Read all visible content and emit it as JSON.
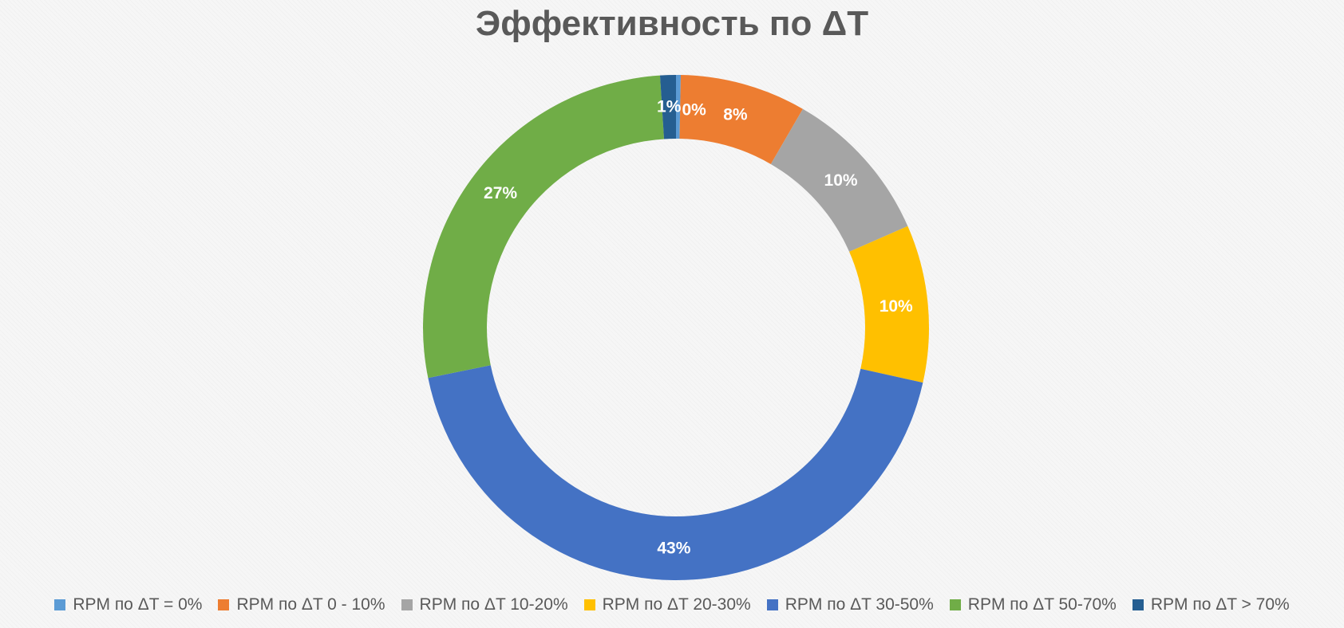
{
  "chart_data": {
    "type": "pie",
    "variant": "donut",
    "title": "Эффективность по ΔT",
    "legend_position": "bottom",
    "categories": [
      "RPM по ΔT = 0%",
      "RPM по ΔT 0 - 10%",
      "RPM по ΔT 10-20%",
      "RPM по ΔT 20-30%",
      "RPM по ΔT 30-50%",
      "RPM по ΔT 50-70%",
      "RPM по ΔT > 70%"
    ],
    "values": [
      0.3,
      8,
      10,
      10,
      43,
      27,
      1
    ],
    "data_labels": [
      "0%",
      "8%",
      "10%",
      "10%",
      "43%",
      "27%",
      "1%"
    ],
    "colors": [
      "#5b9bd5",
      "#ed7d31",
      "#a5a5a5",
      "#ffc000",
      "#4472c4",
      "#70ad47",
      "#255e91"
    ]
  }
}
